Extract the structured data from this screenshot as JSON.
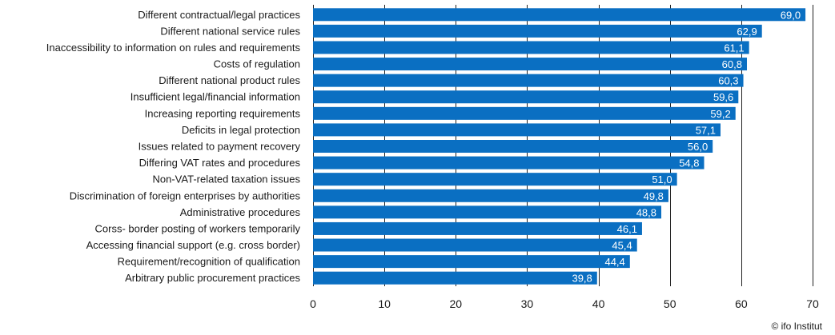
{
  "chart_data": {
    "type": "bar",
    "orientation": "horizontal",
    "categories": [
      "Different contractual/legal practices",
      "Different national service rules",
      "Inaccessibility to information on rules and requirements",
      "Costs of regulation",
      "Different national product rules",
      "Insufficient legal/financial information",
      "Increasing reporting requirements",
      "Deficits in legal protection",
      "Issues related to payment recovery",
      "Differing VAT rates and procedures",
      "Non-VAT-related taxation issues",
      "Discrimination of foreign enterprises by authorities",
      "Administrative procedures",
      "Corss- border posting of workers temporarily",
      "Accessing financial support (e.g. cross border)",
      "Requirement/recognition of qualification",
      "Arbitrary public procurement practices"
    ],
    "values": [
      69.0,
      62.9,
      61.1,
      60.8,
      60.3,
      59.6,
      59.2,
      57.1,
      56.0,
      54.8,
      51.0,
      49.8,
      48.8,
      46.1,
      45.4,
      44.4,
      39.8
    ],
    "value_labels": [
      "69,0",
      "62,9",
      "61,1",
      "60,8",
      "60,3",
      "59,6",
      "59,2",
      "57,1",
      "56,0",
      "54,8",
      "51,0",
      "49,8",
      "48,8",
      "46,1",
      "45,4",
      "44,4",
      "39,8"
    ],
    "xticks": [
      "0",
      "10",
      "20",
      "30",
      "40",
      "50",
      "60",
      "70"
    ],
    "xlim": [
      0,
      70
    ],
    "grid": "vertical",
    "bar_color": "#0a6fc2"
  },
  "credit": "© ifo Institut"
}
